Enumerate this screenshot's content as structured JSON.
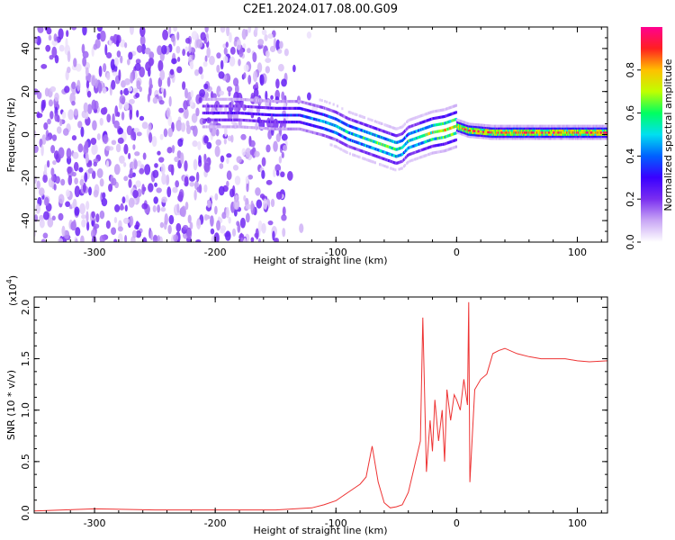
{
  "title": "C2E1.2024.017.08.00.G09",
  "chart_data": [
    {
      "type": "heatmap",
      "xlabel": "Height of straight line (km)",
      "ylabel": "Frequency (Hz)",
      "xlim": [
        -350,
        125
      ],
      "ylim": [
        -50,
        50
      ],
      "x_ticks": [
        -300,
        -200,
        -100,
        0,
        100
      ],
      "x_tick_labels": [
        "-300",
        "-200",
        "-100",
        "0",
        "100"
      ],
      "y_ticks": [
        -40,
        -20,
        0,
        20,
        40
      ],
      "y_tick_labels": [
        "-40",
        "-20",
        "0",
        "20",
        "40"
      ],
      "colorbar": {
        "label": "Normalized spectral amplitude",
        "range": [
          0,
          1
        ],
        "ticks": [
          0.0,
          0.2,
          0.4,
          0.6,
          0.8
        ],
        "tick_labels": [
          "0.0",
          "0.2",
          "0.4",
          "0.6",
          "0.8"
        ],
        "colors": [
          "#ffffff",
          "#c9a7f5",
          "#7a2ef0",
          "#3a00ff",
          "#0060ff",
          "#00e0f0",
          "#00ff60",
          "#c0ff00",
          "#ffc000",
          "#ff2020",
          "#ff0090"
        ]
      },
      "ridge": {
        "x": [
          -210,
          -180,
          -150,
          -130,
          -110,
          -100,
          -90,
          -80,
          -70,
          -60,
          -50,
          -45,
          -40,
          -30,
          -20,
          -10,
          0,
          10,
          30,
          60,
          125
        ],
        "y": [
          10,
          10,
          9,
          9,
          6,
          4,
          1,
          -1,
          -3,
          -5,
          -7,
          -6,
          -3,
          -1,
          1,
          2,
          4,
          2,
          1,
          1,
          1
        ],
        "amplitude": [
          0.25,
          0.25,
          0.3,
          0.35,
          0.45,
          0.5,
          0.5,
          0.55,
          0.6,
          0.6,
          0.6,
          0.55,
          0.55,
          0.6,
          0.7,
          0.75,
          0.8,
          0.85,
          0.85,
          0.88,
          0.9
        ]
      },
      "noise_region": {
        "x": [
          -350,
          -140
        ],
        "y": [
          -50,
          50
        ],
        "amplitude": 0.15
      }
    },
    {
      "type": "line",
      "xlabel": "Height of straight line (km)",
      "ylabel": "SNR (10 * v/v)",
      "y_exponent_label": "(x10",
      "y_exponent_power": "4",
      "y_exponent_close": ")",
      "xlim": [
        -350,
        125
      ],
      "ylim": [
        0,
        2.1
      ],
      "x_ticks": [
        -300,
        -200,
        -100,
        0,
        100
      ],
      "x_tick_labels": [
        "-300",
        "-200",
        "-100",
        "0",
        "100"
      ],
      "y_ticks": [
        0,
        0.5,
        1.0,
        1.5,
        2.0
      ],
      "y_tick_labels": [
        "0.0",
        "0.5",
        "1.0",
        "1.5",
        "2.0"
      ],
      "color": "#ee3333",
      "series": [
        {
          "x": [
            -350,
            -300,
            -250,
            -200,
            -150,
            -120,
            -110,
            -100,
            -90,
            -80,
            -75,
            -70,
            -65,
            -60,
            -55,
            -50,
            -45,
            -40,
            -35,
            -30,
            -28,
            -25,
            -22,
            -20,
            -18,
            -15,
            -12,
            -10,
            -8,
            -5,
            -2,
            0,
            3,
            6,
            9,
            10,
            11,
            15,
            20,
            25,
            30,
            35,
            40,
            50,
            60,
            70,
            80,
            90,
            100,
            110,
            125
          ],
          "y": [
            0.02,
            0.04,
            0.03,
            0.03,
            0.03,
            0.05,
            0.08,
            0.12,
            0.2,
            0.28,
            0.35,
            0.65,
            0.3,
            0.1,
            0.05,
            0.06,
            0.08,
            0.2,
            0.45,
            0.7,
            1.9,
            0.4,
            0.9,
            0.6,
            1.1,
            0.7,
            1.0,
            0.5,
            1.2,
            0.9,
            1.15,
            1.1,
            1.0,
            1.3,
            1.05,
            2.05,
            0.3,
            1.2,
            1.3,
            1.35,
            1.55,
            1.58,
            1.6,
            1.55,
            1.52,
            1.5,
            1.5,
            1.5,
            1.48,
            1.47,
            1.48
          ]
        }
      ]
    }
  ]
}
